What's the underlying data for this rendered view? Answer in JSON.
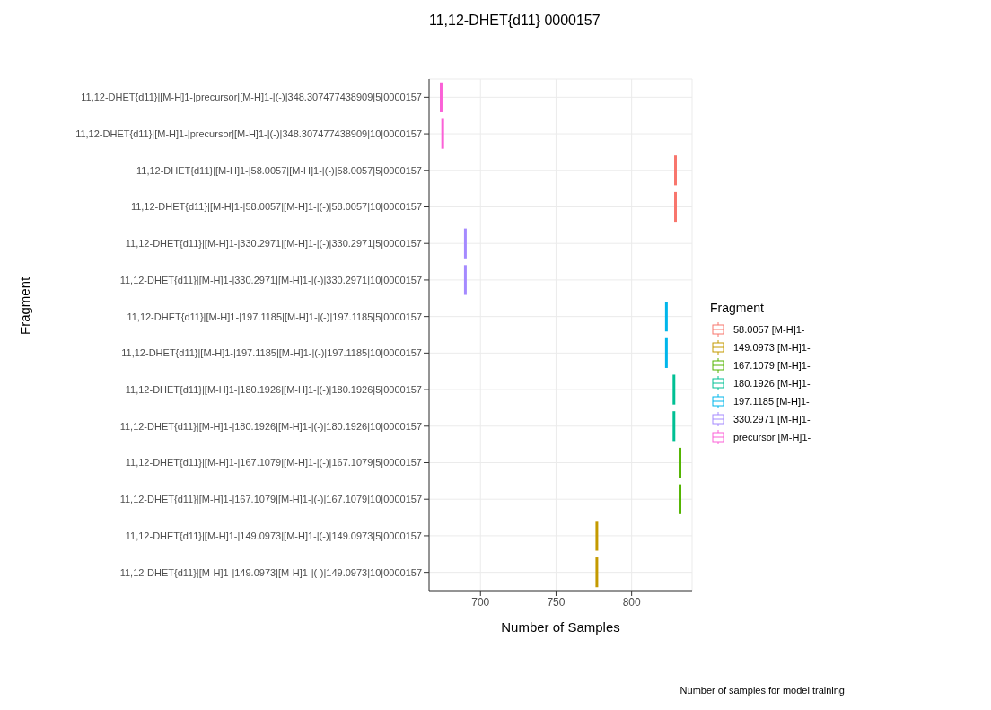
{
  "chart_data": {
    "type": "box",
    "orientation": "horizontal",
    "title": "11,12-DHET{d11} 0000157",
    "xlabel": "Number of Samples",
    "ylabel": "Fragment",
    "legend_title": "Fragment",
    "annotations": [
      "Number of samples for model training"
    ],
    "categories": [
      "11,12-DHET{d11}|[M-H]1-|precursor|[M-H]1-|(-)|348.307477438909|5|0000157",
      "11,12-DHET{d11}|[M-H]1-|precursor|[M-H]1-|(-)|348.307477438909|10|0000157",
      "11,12-DHET{d11}|[M-H]1-|58.0057|[M-H]1-|(-)|58.0057|5|0000157",
      "11,12-DHET{d11}|[M-H]1-|58.0057|[M-H]1-|(-)|58.0057|10|0000157",
      "11,12-DHET{d11}|[M-H]1-|330.2971|[M-H]1-|(-)|330.2971|5|0000157",
      "11,12-DHET{d11}|[M-H]1-|330.2971|[M-H]1-|(-)|330.2971|10|0000157",
      "11,12-DHET{d11}|[M-H]1-|197.1185|[M-H]1-|(-)|197.1185|5|0000157",
      "11,12-DHET{d11}|[M-H]1-|197.1185|[M-H]1-|(-)|197.1185|10|0000157",
      "11,12-DHET{d11}|[M-H]1-|180.1926|[M-H]1-|(-)|180.1926|5|0000157",
      "11,12-DHET{d11}|[M-H]1-|180.1926|[M-H]1-|(-)|180.1926|10|0000157",
      "11,12-DHET{d11}|[M-H]1-|167.1079|[M-H]1-|(-)|167.1079|5|0000157",
      "11,12-DHET{d11}|[M-H]1-|167.1079|[M-H]1-|(-)|167.1079|10|0000157",
      "11,12-DHET{d11}|[M-H]1-|149.0973|[M-H]1-|(-)|149.0973|5|0000157",
      "11,12-DHET{d11}|[M-H]1-|149.0973|[M-H]1-|(-)|149.0973|10|0000157"
    ],
    "series": [
      {
        "name": "58.0057 [M-H]1-",
        "color": "#f8766d",
        "boxes": [
          null,
          null,
          {
            "low": 829,
            "q1": 829,
            "median": 829,
            "q3": 829,
            "high": 829
          },
          {
            "low": 829,
            "q1": 829,
            "median": 829,
            "q3": 829,
            "high": 829
          },
          null,
          null,
          null,
          null,
          null,
          null,
          null,
          null,
          null,
          null
        ]
      },
      {
        "name": "149.0973 [M-H]1-",
        "color": "#c49a00",
        "boxes": [
          null,
          null,
          null,
          null,
          null,
          null,
          null,
          null,
          null,
          null,
          null,
          null,
          {
            "low": 777,
            "q1": 777,
            "median": 777,
            "q3": 777,
            "high": 777
          },
          {
            "low": 777,
            "q1": 777,
            "median": 777,
            "q3": 777,
            "high": 777
          }
        ]
      },
      {
        "name": "167.1079 [M-H]1-",
        "color": "#53b400",
        "boxes": [
          null,
          null,
          null,
          null,
          null,
          null,
          null,
          null,
          null,
          null,
          {
            "low": 832,
            "q1": 832,
            "median": 832,
            "q3": 832,
            "high": 832
          },
          {
            "low": 832,
            "q1": 832,
            "median": 832,
            "q3": 832,
            "high": 832
          },
          null,
          null
        ]
      },
      {
        "name": "180.1926 [M-H]1-",
        "color": "#00c094",
        "boxes": [
          null,
          null,
          null,
          null,
          null,
          null,
          null,
          null,
          {
            "low": 828,
            "q1": 828,
            "median": 828,
            "q3": 828,
            "high": 828
          },
          {
            "low": 828,
            "q1": 828,
            "median": 828,
            "q3": 828,
            "high": 828
          },
          null,
          null,
          null,
          null
        ]
      },
      {
        "name": "197.1185 [M-H]1-",
        "color": "#00b6eb",
        "boxes": [
          null,
          null,
          null,
          null,
          null,
          null,
          {
            "low": 823,
            "q1": 823,
            "median": 823,
            "q3": 823,
            "high": 823
          },
          {
            "low": 823,
            "q1": 823,
            "median": 823,
            "q3": 823,
            "high": 823
          },
          null,
          null,
          null,
          null,
          null,
          null
        ]
      },
      {
        "name": "330.2971 [M-H]1-",
        "color": "#a58aff",
        "boxes": [
          null,
          null,
          null,
          null,
          {
            "low": 690,
            "q1": 690,
            "median": 690,
            "q3": 690,
            "high": 690
          },
          {
            "low": 690,
            "q1": 690,
            "median": 690,
            "q3": 690,
            "high": 690
          },
          null,
          null,
          null,
          null,
          null,
          null,
          null,
          null
        ]
      },
      {
        "name": "precursor [M-H]1-",
        "color": "#fb61d7",
        "boxes": [
          {
            "low": 674,
            "q1": 674,
            "median": 674,
            "q3": 674,
            "high": 674
          },
          {
            "low": 675,
            "q1": 675,
            "median": 675,
            "q3": 675,
            "high": 675
          },
          null,
          null,
          null,
          null,
          null,
          null,
          null,
          null,
          null,
          null,
          null,
          null
        ]
      }
    ],
    "xlim": [
      666,
      840
    ],
    "xticks": [
      700,
      750,
      800
    ],
    "grid": true,
    "legend": "right"
  }
}
